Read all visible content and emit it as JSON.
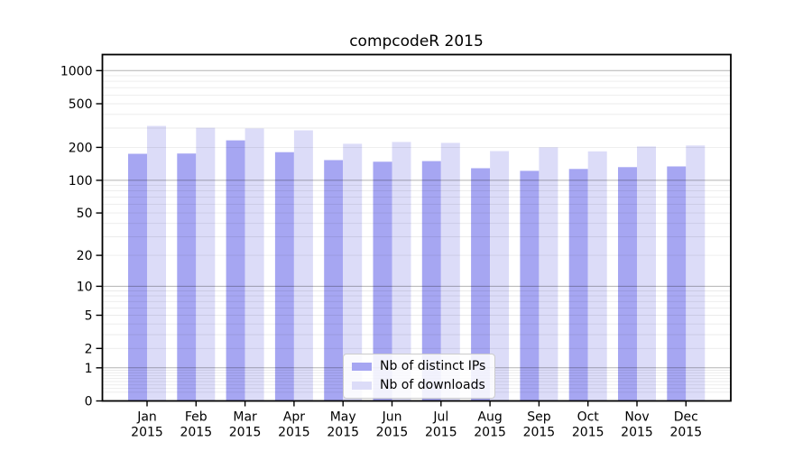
{
  "chart_data": {
    "type": "bar",
    "title": "compcodeR 2015",
    "categories": [
      "Jan",
      "Feb",
      "Mar",
      "Apr",
      "May",
      "Jun",
      "Jul",
      "Aug",
      "Sep",
      "Oct",
      "Nov",
      "Dec"
    ],
    "category_year": "2015",
    "series": [
      {
        "name": "Nb of distinct IPs",
        "color": "#a6a6f2",
        "values": [
          175,
          176,
          232,
          181,
          153,
          148,
          150,
          129,
          122,
          127,
          132,
          134
        ]
      },
      {
        "name": "Nb of downloads",
        "color": "#dcdcf8",
        "values": [
          314,
          302,
          298,
          286,
          216,
          224,
          220,
          185,
          200,
          184,
          204,
          208
        ]
      }
    ],
    "yticks": [
      0,
      1,
      2,
      5,
      10,
      20,
      50,
      100,
      200,
      500,
      1000
    ],
    "y_scale": "log1p",
    "ylim": [
      0,
      1400
    ],
    "grid": true,
    "legend_position": "lower center"
  }
}
